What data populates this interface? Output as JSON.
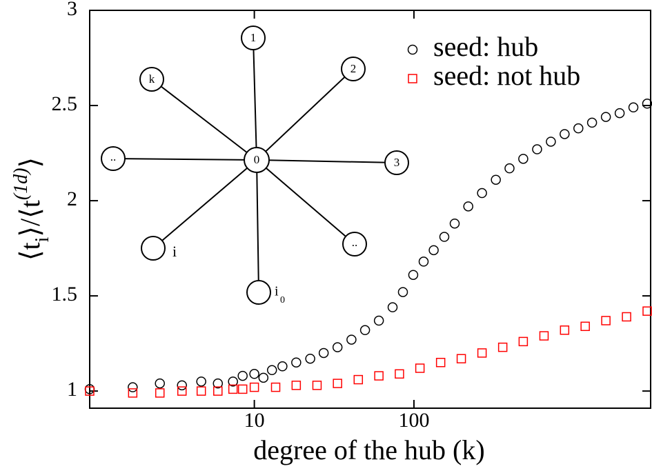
{
  "chart_data": {
    "type": "scatter",
    "xlabel": "degree of the hub (k)",
    "ylabel_parts": [
      "⟨t",
      "i",
      "⟩/⟨t",
      "(1d)",
      "⟩"
    ],
    "xscale": "log",
    "xlim": [
      0.93,
      3040
    ],
    "ylim": [
      0.91,
      3
    ],
    "xticks": [
      10,
      100
    ],
    "yticks": [
      1,
      1.5,
      2,
      2.5,
      3
    ],
    "legend": "upper right",
    "annotations": [
      "0",
      "1",
      "2",
      "3",
      "..",
      "..",
      "k",
      "i",
      "i",
      "0"
    ],
    "series": [
      {
        "name": "seed: hub",
        "color": "#000000",
        "marker": "circle",
        "x": [
          0.93,
          1.73,
          2.56,
          3.52,
          4.65,
          5.91,
          7.35,
          8.45,
          10,
          11.4,
          12.9,
          15.0,
          18.3,
          22.4,
          27.2,
          33.2,
          40.6,
          49.4,
          60.3,
          73.5,
          85.3,
          99.0,
          115,
          133,
          155,
          180,
          219,
          267,
          326,
          397,
          484,
          591,
          721,
          879,
          1072,
          1306,
          1594,
          1945,
          2371,
          2893
        ],
        "values": [
          1.01,
          1.02,
          1.04,
          1.03,
          1.05,
          1.04,
          1.05,
          1.08,
          1.09,
          1.07,
          1.11,
          1.13,
          1.15,
          1.17,
          1.2,
          1.23,
          1.27,
          1.32,
          1.37,
          1.44,
          1.52,
          1.61,
          1.68,
          1.74,
          1.81,
          1.88,
          1.97,
          2.04,
          2.11,
          2.17,
          2.22,
          2.27,
          2.31,
          2.35,
          2.38,
          2.41,
          2.44,
          2.46,
          2.49,
          2.51
        ]
      },
      {
        "name": "seed: not hub",
        "color": "#ff0000",
        "marker": "square",
        "x": [
          0.93,
          1.73,
          2.56,
          3.52,
          4.65,
          5.91,
          7.35,
          8.45,
          10,
          13.6,
          18.3,
          24.7,
          33.2,
          44.8,
          60.3,
          81.1,
          109,
          147,
          198,
          267,
          360,
          484,
          653,
          879,
          1183,
          1594,
          2148,
          2893
        ],
        "values": [
          1.0,
          0.99,
          0.99,
          1.0,
          1.0,
          1.0,
          1.01,
          1.01,
          1.02,
          1.02,
          1.03,
          1.03,
          1.04,
          1.06,
          1.08,
          1.09,
          1.12,
          1.15,
          1.17,
          1.2,
          1.23,
          1.26,
          1.29,
          1.32,
          1.34,
          1.37,
          1.39,
          1.42
        ]
      }
    ]
  }
}
